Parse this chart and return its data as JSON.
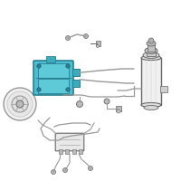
{
  "bg_color": "#ffffff",
  "border_color": "#dddddd",
  "highlight_color": "#4dbdd4",
  "line_color": "#999999",
  "dark_color": "#666666",
  "light_gray": "#bbbbbb",
  "mid_gray": "#cccccc"
}
